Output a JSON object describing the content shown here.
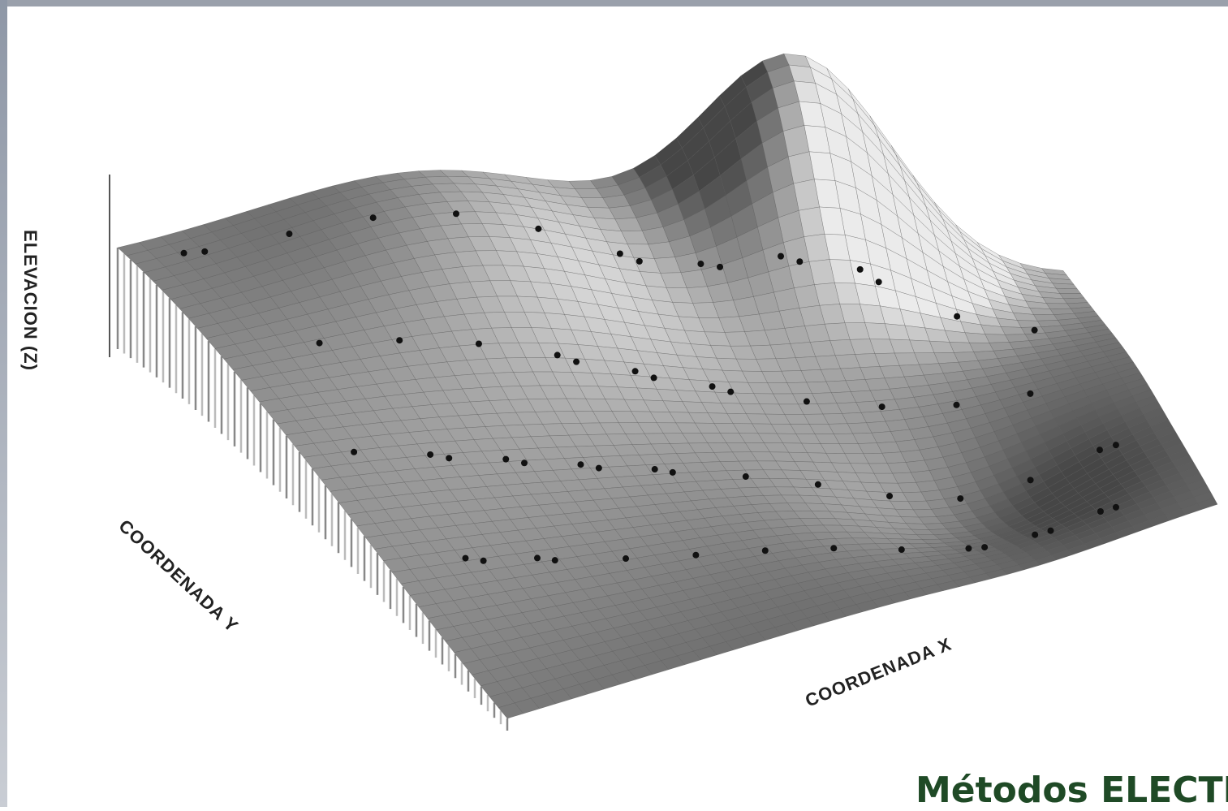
{
  "figure": {
    "z_axis_label": "ELEVACION (Z)",
    "y_axis_label": "COORDENADA Y",
    "x_axis_label": "COORDENADA X"
  },
  "footer": {
    "title": "Métodos ELECTRÓ"
  }
}
